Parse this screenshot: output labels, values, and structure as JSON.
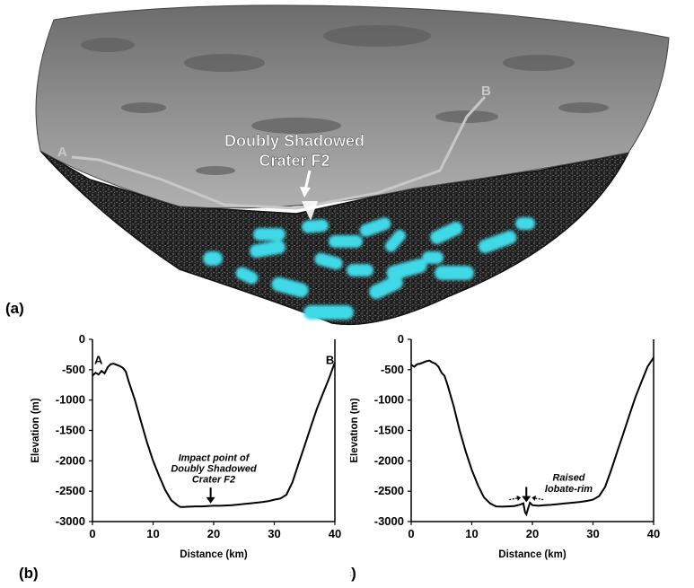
{
  "panel_a": {
    "tag": "(a)",
    "crater_label_line1": "Doubly Shadowed",
    "crater_label_line2": "Crater F2",
    "point_a": "A",
    "point_b": "B"
  },
  "colors": {
    "accent": "#3fd9e8",
    "profile_line": "#c8c8c8",
    "surface": "#8a8a8a",
    "cross_section": "#2a2a2a"
  },
  "chart_data": [
    {
      "type": "line",
      "tag": "(b)",
      "xlabel": "Distance (km)",
      "ylabel": "Elevation (m)",
      "xlim": [
        0,
        40
      ],
      "ylim": [
        -3000,
        0
      ],
      "xticks": [
        0,
        10,
        20,
        30,
        40
      ],
      "yticks": [
        0,
        -500,
        -1000,
        -1500,
        -2000,
        -2500,
        -3000
      ],
      "grid": false,
      "series": [
        {
          "x": [
            0,
            0.5,
            1,
            1.5,
            2,
            2.5,
            3,
            3.5,
            4,
            4.5,
            5,
            5.5,
            6,
            7,
            8,
            9,
            10,
            11,
            12,
            13,
            14,
            14.5,
            15,
            16,
            17,
            18,
            19,
            20,
            21,
            22,
            23,
            24,
            25,
            26,
            27,
            28,
            29,
            30,
            31,
            32,
            33,
            34,
            35,
            36,
            37,
            38,
            39,
            40
          ],
          "y": [
            -600,
            -550,
            -580,
            -520,
            -560,
            -460,
            -410,
            -400,
            -420,
            -440,
            -470,
            -530,
            -700,
            -1000,
            -1350,
            -1700,
            -2000,
            -2250,
            -2480,
            -2650,
            -2730,
            -2760,
            -2760,
            -2755,
            -2750,
            -2750,
            -2745,
            -2740,
            -2740,
            -2735,
            -2730,
            -2720,
            -2710,
            -2700,
            -2690,
            -2680,
            -2665,
            -2640,
            -2620,
            -2560,
            -2350,
            -2050,
            -1750,
            -1450,
            -1150,
            -900,
            -650,
            -380
          ]
        }
      ],
      "annotations": [
        {
          "text": "Impact point of",
          "x": 20,
          "y": -2000
        },
        {
          "text": "Doubly Shadowed",
          "x": 20,
          "y": -2180
        },
        {
          "text": "Crater F2",
          "x": 20,
          "y": -2360
        }
      ],
      "point_labels": [
        "A",
        "B"
      ]
    },
    {
      "type": "line",
      "tag": "(c)",
      "xlabel": "Distance (km)",
      "ylabel": "Elevation (m)",
      "xlim": [
        0,
        40
      ],
      "ylim": [
        -3000,
        0
      ],
      "xticks": [
        0,
        10,
        20,
        30,
        40
      ],
      "yticks": [
        0,
        -500,
        -1000,
        -1500,
        -2000,
        -2500,
        -3000
      ],
      "grid": false,
      "series": [
        {
          "x": [
            0,
            0.5,
            1,
            1.5,
            2,
            2.5,
            3,
            3.5,
            4,
            4.5,
            5,
            5.5,
            6,
            7,
            8,
            9,
            10,
            11,
            12,
            13,
            14,
            15,
            16,
            17,
            18,
            18.5,
            18.8,
            19,
            19.3,
            19.6,
            20,
            21,
            22,
            23,
            24,
            25,
            26,
            27,
            28,
            29,
            30,
            31,
            32,
            33,
            34,
            35,
            36,
            37,
            38,
            39,
            40
          ],
          "y": [
            -420,
            -450,
            -410,
            -400,
            -380,
            -360,
            -350,
            -380,
            -400,
            -450,
            -550,
            -600,
            -750,
            -1100,
            -1500,
            -1850,
            -2150,
            -2400,
            -2600,
            -2700,
            -2750,
            -2755,
            -2750,
            -2745,
            -2720,
            -2700,
            -2850,
            -2880,
            -2780,
            -2690,
            -2730,
            -2740,
            -2730,
            -2725,
            -2715,
            -2705,
            -2695,
            -2685,
            -2675,
            -2660,
            -2640,
            -2580,
            -2430,
            -2150,
            -1850,
            -1550,
            -1250,
            -950,
            -700,
            -450,
            -300
          ]
        }
      ],
      "annotations": [
        {
          "text": "Raised",
          "x": 26,
          "y": -2330
        },
        {
          "text": "lobate-rim",
          "x": 26,
          "y": -2510
        }
      ]
    }
  ]
}
